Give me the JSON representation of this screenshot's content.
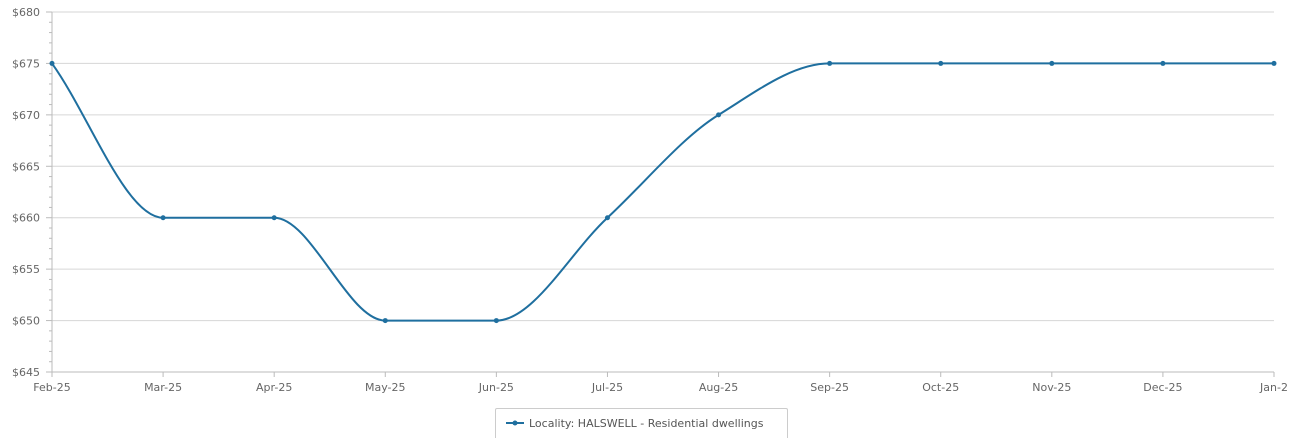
{
  "chart_data": {
    "type": "line",
    "x": [
      "Feb-25",
      "Mar-25",
      "Apr-25",
      "May-25",
      "Jun-25",
      "Jul-25",
      "Aug-25",
      "Sep-25",
      "Oct-25",
      "Nov-25",
      "Dec-25",
      "Jan-2"
    ],
    "series": [
      {
        "name": "Locality: HALSWELL - Residential dwellings",
        "values": [
          675,
          660,
          660,
          650,
          650,
          660,
          670,
          675,
          675,
          675,
          675,
          675
        ],
        "color": "#1f6f9f"
      }
    ],
    "y_ticks": [
      "$645",
      "$650",
      "$655",
      "$660",
      "$665",
      "$670",
      "$675",
      "$680"
    ],
    "ylim": [
      645,
      680
    ],
    "title": "",
    "xlabel": "",
    "ylabel": "",
    "grid": true,
    "legend_position": "bottom-center"
  }
}
